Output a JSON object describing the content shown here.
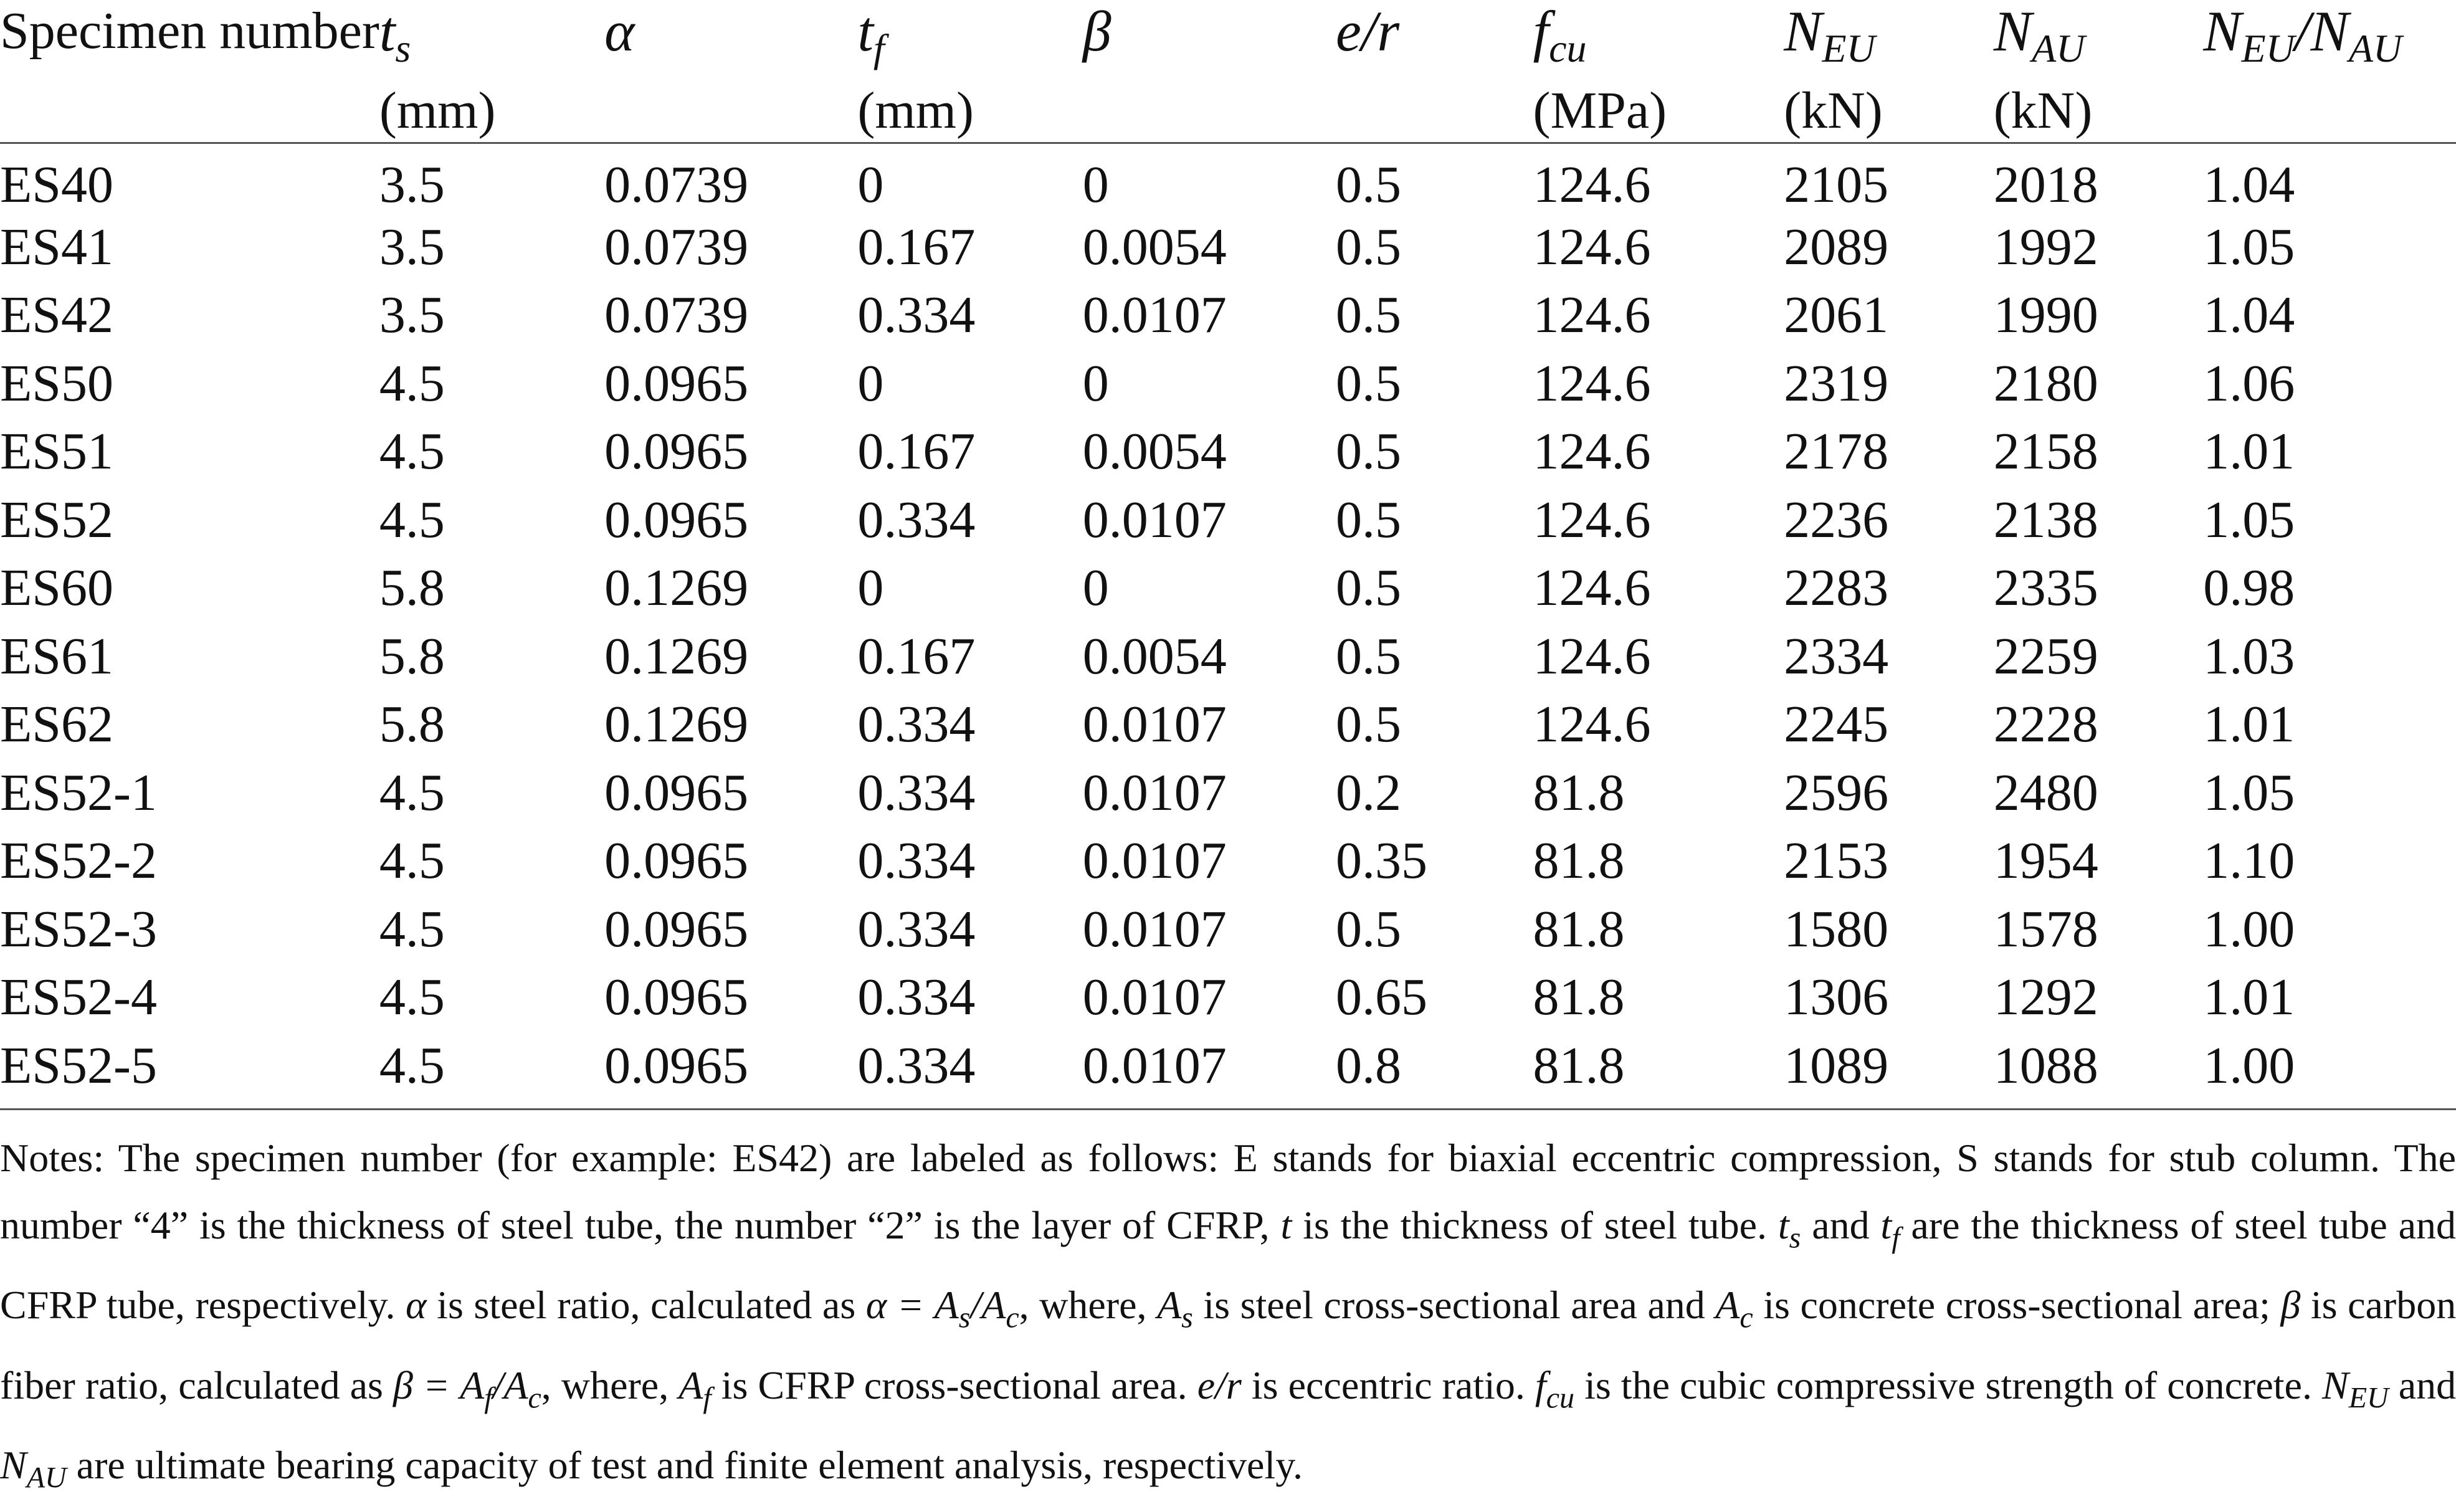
{
  "table": {
    "headers": [
      {
        "name": "specimen",
        "label": "Specimen number"
      },
      {
        "name": "ts",
        "symbol": "t",
        "subscript": "s",
        "unit": "(mm)"
      },
      {
        "name": "alpha",
        "symbol": "α"
      },
      {
        "name": "tf",
        "symbol": "t",
        "subscript": "f",
        "unit": "(mm)"
      },
      {
        "name": "beta",
        "symbol": "β"
      },
      {
        "name": "er",
        "symbol": "e/r"
      },
      {
        "name": "fcu",
        "symbol": "f",
        "subscript": "cu",
        "unit": "(MPa)"
      },
      {
        "name": "neu",
        "symbol": "N",
        "subscript": "EU",
        "unit": "(kN)"
      },
      {
        "name": "nau",
        "symbol": "N",
        "subscript": "AU",
        "unit": "(kN)"
      },
      {
        "name": "ratio",
        "symbol": "N",
        "subscript": "EU",
        "symbol2": "/N",
        "subscript2": "AU"
      }
    ],
    "rows": [
      [
        "ES40",
        "3.5",
        "0.0739",
        "0",
        "0",
        "0.5",
        "124.6",
        "2105",
        "2018",
        "1.04"
      ],
      [
        "ES41",
        "3.5",
        "0.0739",
        "0.167",
        "0.0054",
        "0.5",
        "124.6",
        "2089",
        "1992",
        "1.05"
      ],
      [
        "ES42",
        "3.5",
        "0.0739",
        "0.334",
        "0.0107",
        "0.5",
        "124.6",
        "2061",
        "1990",
        "1.04"
      ],
      [
        "ES50",
        "4.5",
        "0.0965",
        "0",
        "0",
        "0.5",
        "124.6",
        "2319",
        "2180",
        "1.06"
      ],
      [
        "ES51",
        "4.5",
        "0.0965",
        "0.167",
        "0.0054",
        "0.5",
        "124.6",
        "2178",
        "2158",
        "1.01"
      ],
      [
        "ES52",
        "4.5",
        "0.0965",
        "0.334",
        "0.0107",
        "0.5",
        "124.6",
        "2236",
        "2138",
        "1.05"
      ],
      [
        "ES60",
        "5.8",
        "0.1269",
        "0",
        "0",
        "0.5",
        "124.6",
        "2283",
        "2335",
        "0.98"
      ],
      [
        "ES61",
        "5.8",
        "0.1269",
        "0.167",
        "0.0054",
        "0.5",
        "124.6",
        "2334",
        "2259",
        "1.03"
      ],
      [
        "ES62",
        "5.8",
        "0.1269",
        "0.334",
        "0.0107",
        "0.5",
        "124.6",
        "2245",
        "2228",
        "1.01"
      ],
      [
        "ES52-1",
        "4.5",
        "0.0965",
        "0.334",
        "0.0107",
        "0.2",
        "81.8",
        "2596",
        "2480",
        "1.05"
      ],
      [
        "ES52-2",
        "4.5",
        "0.0965",
        "0.334",
        "0.0107",
        "0.35",
        "81.8",
        "2153",
        "1954",
        "1.10"
      ],
      [
        "ES52-3",
        "4.5",
        "0.0965",
        "0.334",
        "0.0107",
        "0.5",
        "81.8",
        "1580",
        "1578",
        "1.00"
      ],
      [
        "ES52-4",
        "4.5",
        "0.0965",
        "0.334",
        "0.0107",
        "0.65",
        "81.8",
        "1306",
        "1292",
        "1.01"
      ],
      [
        "ES52-5",
        "4.5",
        "0.0965",
        "0.334",
        "0.0107",
        "0.8",
        "81.8",
        "1089",
        "1088",
        "1.00"
      ]
    ]
  },
  "notes": {
    "p1": "Notes: The specimen number (for example: ES42) are labeled as follows: E stands for biaxial eccentric compression, S stands for stub column. The number “4” is the thickness of steel tube, the number “2” is the layer of CFRP,",
    "t": "t",
    "p2": "is the thickness of steel tube.",
    "ts_sym": "t",
    "ts_sub": "s",
    "p3": "and",
    "tf_sym": "t",
    "tf_sub": "f",
    "p4": "are the thickness of steel tube and CFRP tube, respectively.",
    "alpha": "α",
    "p5": "is steel ratio, calculated as",
    "alpha_eq": "α = A",
    "as_sub": "s",
    "alpha_eq2": "/A",
    "ac_sub": "c",
    "p6": ", where,",
    "As_sym": "A",
    "As_sub": "s",
    "p7": "is steel cross-sectional area and",
    "Ac_sym": "A",
    "Ac_sub": "c",
    "p8": "is concrete cross-sectional area;",
    "beta": "β",
    "p9": "is carbon fiber ratio, calculated as",
    "beta_eq": "β = A",
    "af_sub": "f",
    "beta_eq2": "/A",
    "ac2_sub": "c",
    "p10": ", where,",
    "Af_sym": "A",
    "Af_sub": "f",
    "p11": "is CFRP cross-sectional area.",
    "er": "e/r",
    "p12": "is eccentric ratio.",
    "fcu_sym": "f",
    "fcu_sub": "cu",
    "p13": "is the cubic compressive strength of concrete.",
    "neu_sym": "N",
    "neu_sub": "EU",
    "p14": "and",
    "nau_sym": "N",
    "nau_sub": "AU",
    "p15": "are ultimate bearing capacity of test and finite element analysis, respectively."
  }
}
